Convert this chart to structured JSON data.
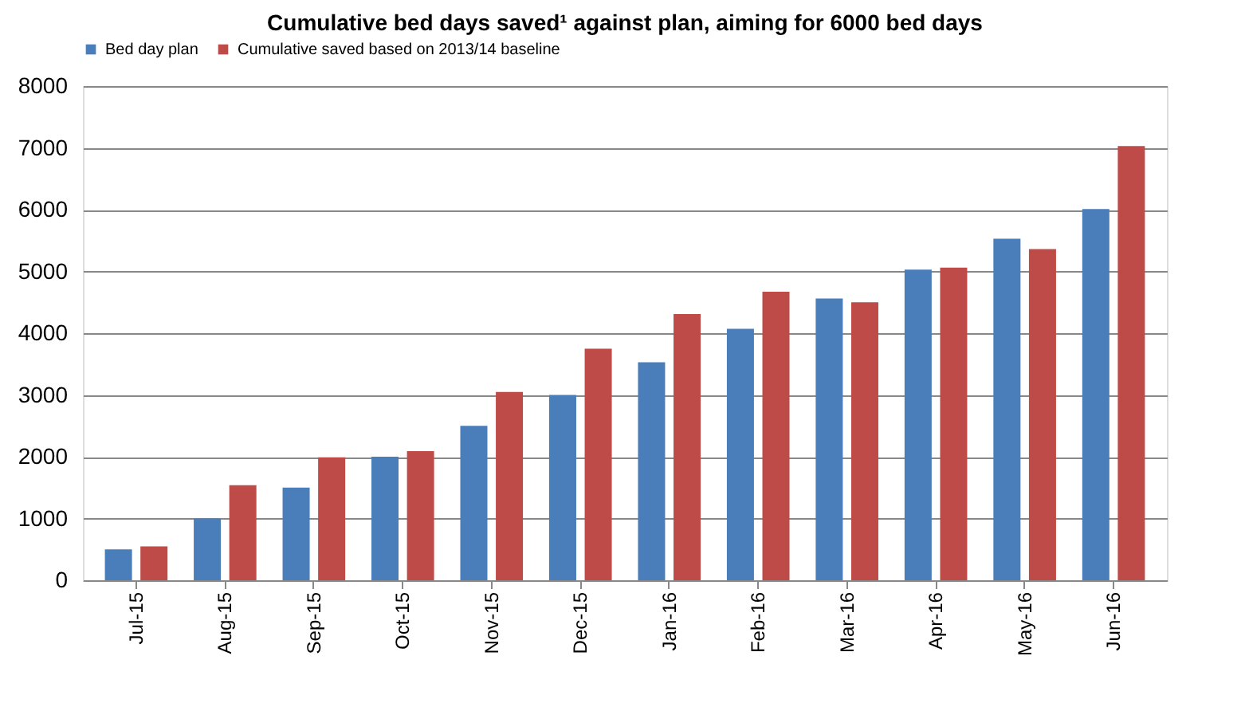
{
  "chart_data": {
    "type": "bar",
    "title": "Cumulative bed days saved¹ against plan, aiming for 6000 bed days",
    "categories": [
      "Jul-15",
      "Aug-15",
      "Sep-15",
      "Oct-15",
      "Nov-15",
      "Dec-15",
      "Jan-16",
      "Feb-16",
      "Mar-16",
      "Apr-16",
      "May-16",
      "Jun-16"
    ],
    "series": [
      {
        "name": "Bed day plan",
        "color": "#4a7ebb",
        "values": [
          500,
          1000,
          1500,
          2000,
          2500,
          3000,
          3530,
          4070,
          4560,
          5030,
          5530,
          6010
        ]
      },
      {
        "name": "Cumulative saved based on 2013/14 baseline",
        "color": "#be4b48",
        "values": [
          550,
          1540,
          1990,
          2090,
          3050,
          3750,
          4310,
          4670,
          4500,
          5060,
          5360,
          7030
        ]
      }
    ],
    "ylim": [
      0,
      8000
    ],
    "yticks": [
      0,
      1000,
      2000,
      3000,
      4000,
      5000,
      6000,
      7000,
      8000
    ],
    "grid": "y",
    "legend": "top"
  }
}
